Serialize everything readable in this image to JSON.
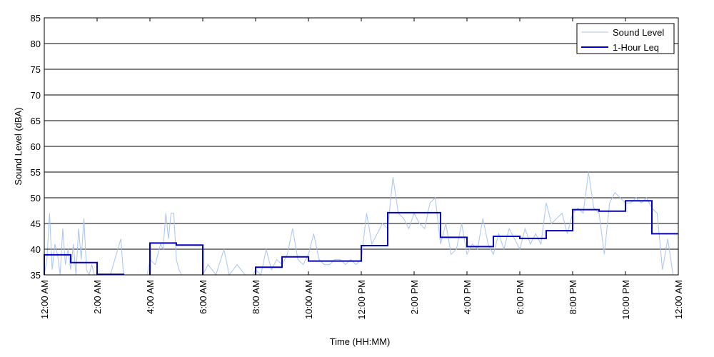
{
  "chart_data": {
    "type": "line",
    "xlabel": "Time (HH:MM)",
    "ylabel": "Sound Level (dBA)",
    "ylim": [
      35,
      85
    ],
    "xlim_hours": [
      0,
      24
    ],
    "y_ticks": [
      35,
      40,
      45,
      50,
      55,
      60,
      65,
      70,
      75,
      80,
      85
    ],
    "x_tick_labels": [
      "12:00 AM",
      "2:00 AM",
      "4:00 AM",
      "6:00 AM",
      "8:00 AM",
      "10:00 AM",
      "12:00 PM",
      "2:00 PM",
      "4:00 PM",
      "6:00 PM",
      "8:00 PM",
      "10:00 PM",
      "12:00 AM"
    ],
    "grid": "horizontal",
    "legend": "top-right",
    "colors": {
      "sound_level": "#a8c4f0",
      "leq": "#0000cc"
    },
    "series": [
      {
        "name": "Sound Level",
        "approximate": true,
        "x_hours": [
          0.0,
          0.1,
          0.2,
          0.3,
          0.4,
          0.5,
          0.6,
          0.7,
          0.8,
          0.9,
          1.0,
          1.1,
          1.2,
          1.3,
          1.4,
          1.5,
          1.6,
          1.7,
          1.8,
          1.9,
          2.0,
          2.5,
          2.9,
          3.0,
          3.2,
          3.5,
          3.9,
          4.0,
          4.2,
          4.4,
          4.5,
          4.6,
          4.7,
          4.8,
          4.9,
          5.0,
          5.1,
          5.2,
          5.4,
          5.6,
          5.8,
          6.0,
          6.2,
          6.5,
          6.8,
          7.0,
          7.3,
          7.6,
          7.9,
          8.0,
          8.2,
          8.4,
          8.6,
          8.8,
          9.0,
          9.2,
          9.4,
          9.6,
          9.8,
          10.0,
          10.2,
          10.4,
          10.6,
          10.8,
          11.0,
          11.2,
          11.4,
          11.6,
          11.8,
          12.0,
          12.2,
          12.4,
          12.6,
          12.8,
          13.0,
          13.2,
          13.4,
          13.6,
          13.8,
          14.0,
          14.2,
          14.4,
          14.6,
          14.8,
          15.0,
          15.2,
          15.4,
          15.6,
          15.8,
          16.0,
          16.2,
          16.4,
          16.6,
          16.8,
          17.0,
          17.2,
          17.4,
          17.6,
          17.8,
          18.0,
          18.2,
          18.4,
          18.6,
          18.8,
          19.0,
          19.2,
          19.4,
          19.6,
          19.8,
          20.0,
          20.2,
          20.4,
          20.6,
          20.8,
          21.0,
          21.2,
          21.4,
          21.6,
          21.8,
          22.0,
          22.2,
          22.4,
          22.6,
          22.8,
          23.0,
          23.2,
          23.4,
          23.6,
          23.8,
          24.0
        ],
        "y": [
          35,
          38,
          47,
          36,
          41,
          39,
          35,
          44,
          37,
          40,
          36,
          41,
          35,
          44,
          38,
          46,
          36,
          35,
          37,
          35,
          35,
          35,
          42,
          35,
          35,
          35,
          35,
          38,
          37,
          41,
          40,
          47,
          42,
          47,
          47,
          38,
          36,
          35,
          35,
          35,
          35,
          35,
          37,
          35,
          40,
          35,
          37,
          35,
          35,
          36,
          35,
          40,
          36,
          38,
          37,
          39,
          44,
          38,
          37,
          39,
          43,
          38,
          37,
          37,
          38,
          38,
          37,
          38,
          37,
          38,
          47,
          41,
          43,
          45,
          44,
          54,
          47,
          46,
          44,
          47,
          45,
          44,
          49,
          50,
          41,
          45,
          39,
          40,
          45,
          39,
          41,
          40,
          46,
          41,
          39,
          43,
          40,
          44,
          42,
          40,
          44,
          41,
          43,
          41,
          49,
          45,
          46,
          47,
          43,
          47,
          48,
          47,
          55,
          48,
          47,
          39,
          49,
          51,
          50,
          49,
          49,
          50,
          49,
          50,
          48,
          47,
          36,
          42,
          35,
          35
        ]
      },
      {
        "name": "1-Hour Leq",
        "step": true,
        "hours": [
          0,
          1,
          2,
          3,
          4,
          5,
          6,
          7,
          8,
          9,
          10,
          11,
          12,
          13,
          14,
          15,
          16,
          17,
          18,
          19,
          20,
          21,
          22,
          23
        ],
        "values": [
          38.9,
          37.4,
          35.1,
          null,
          41.2,
          40.8,
          null,
          null,
          36.5,
          38.5,
          37.7,
          37.7,
          40.7,
          47.1,
          47.1,
          42.3,
          40.5,
          42.5,
          42.1,
          43.6,
          47.7,
          47.4,
          49.4,
          43.0
        ]
      }
    ]
  }
}
